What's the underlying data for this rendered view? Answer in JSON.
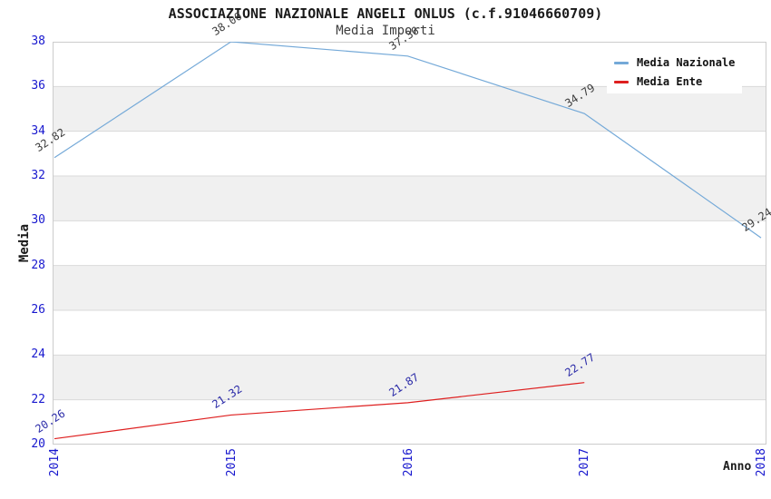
{
  "chart_data": {
    "type": "line",
    "title": "ASSOCIAZIONE NAZIONALE ANGELI ONLUS (c.f.91046660709)",
    "subtitle": "Media Importi",
    "xlabel": "Anno",
    "ylabel": "Media",
    "x": [
      "2014",
      "2015",
      "2016",
      "2017",
      "2018"
    ],
    "ylim": [
      20,
      38
    ],
    "ytick_step": 2,
    "yticks": [
      20,
      22,
      24,
      26,
      28,
      30,
      32,
      34,
      36,
      38
    ],
    "grid": "alternating-horizontal-bands",
    "legend_position": "top-right",
    "series": [
      {
        "name": "Media Nazionale",
        "color": "#74a9d8",
        "label_color": "#3d3d3d",
        "values": [
          32.82,
          38.0,
          37.36,
          34.79,
          29.24
        ],
        "labels": [
          "32.82",
          "38.00",
          "37.36",
          "34.79",
          "29.24"
        ]
      },
      {
        "name": "Media Ente",
        "color": "#de1f1f",
        "label_color": "#2b2ba8",
        "values": [
          20.26,
          21.32,
          21.87,
          22.77,
          null
        ],
        "labels": [
          "20.26",
          "21.32",
          "21.87",
          "22.77",
          null
        ]
      }
    ],
    "colors": {
      "tick_label": "#1717ce",
      "band": "#f0f0f0",
      "gridline": "#dadada",
      "plot_border": "#cccccc",
      "background": "#ffffff"
    }
  }
}
